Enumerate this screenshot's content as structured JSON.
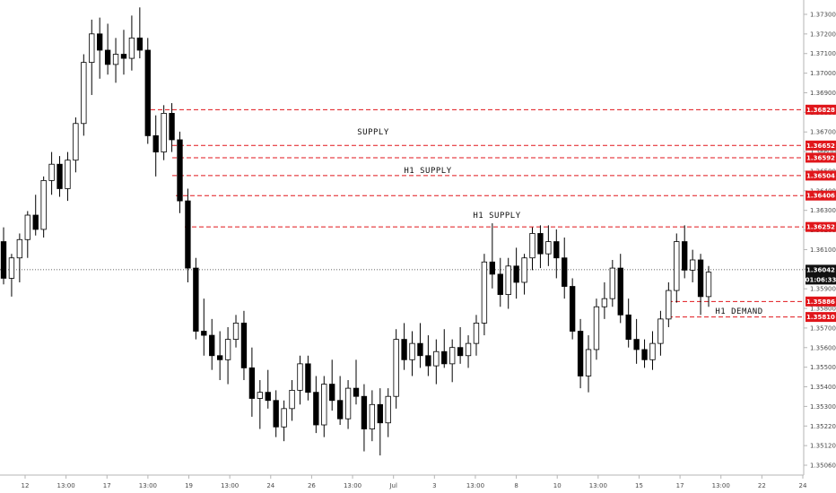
{
  "colors": {
    "background": "#ffffff",
    "level_line": "#e0161b",
    "level_badge": "#e0161b",
    "price_badge": "#111111",
    "candle_body": "#000000",
    "candle_hollow": "#ffffff",
    "axis_text": "#4a4a4a"
  },
  "chart_data": {
    "type": "candlestick",
    "instrument_note": "",
    "x_ticks": [
      "12",
      "13:00",
      "17",
      "13:00",
      "19",
      "13:00",
      "24",
      "26",
      "13:00",
      "Jul",
      "3",
      "13:00",
      "8",
      "10",
      "13:00",
      "15",
      "17",
      "13:00",
      "22",
      "24"
    ],
    "y_ticks": [
      "1.37300",
      "1.37200",
      "1.37100",
      "1.37000",
      "1.36900",
      "1.36800",
      "1.36700",
      "1.36600",
      "1.36500",
      "1.36400",
      "1.36300",
      "1.36200",
      "1.36100",
      "1.36000",
      "1.35900",
      "1.35800",
      "1.35700",
      "1.35600",
      "1.35500",
      "1.35400",
      "1.35300",
      "1.35220",
      "1.35120",
      "1.35060"
    ],
    "ylim": [
      1.3506,
      1.3734
    ],
    "levels": [
      {
        "label": "1.36828",
        "value": 1.36828,
        "style": "dashed"
      },
      {
        "label": "1.36652",
        "value": 1.36652,
        "style": "dashed"
      },
      {
        "label": "1.36592",
        "value": 1.36592,
        "style": "dashed"
      },
      {
        "label": "1.36504",
        "value": 1.36504,
        "style": "dashed"
      },
      {
        "label": "1.36406",
        "value": 1.36406,
        "style": "dashed"
      },
      {
        "label": "1.36252",
        "value": 1.36252,
        "style": "dashed"
      },
      {
        "label": "1.35886",
        "value": 1.35886,
        "style": "dashed"
      },
      {
        "label": "1.35810",
        "value": 1.3581,
        "style": "dashed"
      }
    ],
    "current_price": {
      "label": "1.36042",
      "value": 1.36042,
      "countdown": "01:06:33"
    },
    "zones": [
      {
        "label": "SUPPLY",
        "price": 1.3672
      },
      {
        "label": "H1 SUPPLY",
        "price": 1.3653
      },
      {
        "label": "H1 SUPPLY",
        "price": 1.3631
      },
      {
        "label": "H1 DEMAND",
        "price": 1.3584
      }
    ],
    "candles": [
      [
        1.3618,
        1.3625,
        1.3597,
        1.36
      ],
      [
        1.36,
        1.3612,
        1.3591,
        1.361
      ],
      [
        1.361,
        1.3622,
        1.3598,
        1.3619
      ],
      [
        1.3619,
        1.3633,
        1.361,
        1.3631
      ],
      [
        1.3631,
        1.3641,
        1.3621,
        1.3624
      ],
      [
        1.3624,
        1.365,
        1.362,
        1.3648
      ],
      [
        1.3648,
        1.3662,
        1.3641,
        1.3656
      ],
      [
        1.3656,
        1.366,
        1.364,
        1.3644
      ],
      [
        1.3644,
        1.3662,
        1.3638,
        1.3658
      ],
      [
        1.3658,
        1.3679,
        1.3652,
        1.3676
      ],
      [
        1.3676,
        1.371,
        1.367,
        1.3706
      ],
      [
        1.3706,
        1.3727,
        1.369,
        1.372
      ],
      [
        1.372,
        1.3728,
        1.3698,
        1.3712
      ],
      [
        1.3712,
        1.3725,
        1.37,
        1.3705
      ],
      [
        1.3705,
        1.3718,
        1.3696,
        1.371
      ],
      [
        1.371,
        1.3722,
        1.37,
        1.3708
      ],
      [
        1.3708,
        1.3729,
        1.3702,
        1.3718
      ],
      [
        1.3718,
        1.3733,
        1.3708,
        1.3712
      ],
      [
        1.3712,
        1.3718,
        1.3666,
        1.367
      ],
      [
        1.367,
        1.368,
        1.365,
        1.3662
      ],
      [
        1.3662,
        1.3685,
        1.3658,
        1.3681
      ],
      [
        1.3681,
        1.3686,
        1.3662,
        1.3668
      ],
      [
        1.3668,
        1.3672,
        1.3632,
        1.3638
      ],
      [
        1.3638,
        1.3644,
        1.3598,
        1.3605
      ],
      [
        1.3605,
        1.361,
        1.357,
        1.3574
      ],
      [
        1.3574,
        1.359,
        1.3562,
        1.3572
      ],
      [
        1.3572,
        1.358,
        1.3555,
        1.3562
      ],
      [
        1.3562,
        1.3574,
        1.355,
        1.356
      ],
      [
        1.356,
        1.3576,
        1.3548,
        1.357
      ],
      [
        1.357,
        1.3582,
        1.3566,
        1.3578
      ],
      [
        1.3578,
        1.3584,
        1.355,
        1.3556
      ],
      [
        1.3556,
        1.3566,
        1.3532,
        1.3541
      ],
      [
        1.3541,
        1.355,
        1.3526,
        1.3544
      ],
      [
        1.3544,
        1.3555,
        1.3536,
        1.354
      ],
      [
        1.354,
        1.3545,
        1.3522,
        1.3527
      ],
      [
        1.3527,
        1.354,
        1.352,
        1.3536
      ],
      [
        1.3536,
        1.355,
        1.353,
        1.3545
      ],
      [
        1.3545,
        1.3562,
        1.3538,
        1.3558
      ],
      [
        1.3558,
        1.3562,
        1.354,
        1.3544
      ],
      [
        1.3544,
        1.3552,
        1.3524,
        1.3528
      ],
      [
        1.3528,
        1.3552,
        1.3522,
        1.3548
      ],
      [
        1.3548,
        1.356,
        1.3535,
        1.354
      ],
      [
        1.354,
        1.3552,
        1.3528,
        1.3531
      ],
      [
        1.3531,
        1.355,
        1.3526,
        1.3546
      ],
      [
        1.3546,
        1.356,
        1.3538,
        1.3542
      ],
      [
        1.3542,
        1.3548,
        1.3515,
        1.3526
      ],
      [
        1.3526,
        1.3545,
        1.352,
        1.3538
      ],
      [
        1.3538,
        1.3546,
        1.3513,
        1.3529
      ],
      [
        1.3529,
        1.3546,
        1.3522,
        1.3542
      ],
      [
        1.3542,
        1.3575,
        1.3536,
        1.357
      ],
      [
        1.357,
        1.3578,
        1.3555,
        1.356
      ],
      [
        1.356,
        1.3574,
        1.3552,
        1.3568
      ],
      [
        1.3568,
        1.3578,
        1.3556,
        1.3562
      ],
      [
        1.3562,
        1.3572,
        1.3552,
        1.3557
      ],
      [
        1.3557,
        1.357,
        1.3548,
        1.3564
      ],
      [
        1.3564,
        1.3575,
        1.3556,
        1.3558
      ],
      [
        1.3558,
        1.357,
        1.3549,
        1.3566
      ],
      [
        1.3566,
        1.3576,
        1.3558,
        1.3562
      ],
      [
        1.3562,
        1.3572,
        1.3556,
        1.3568
      ],
      [
        1.3568,
        1.3582,
        1.3562,
        1.3578
      ],
      [
        1.3578,
        1.3612,
        1.3572,
        1.3608
      ],
      [
        1.3608,
        1.3627,
        1.3595,
        1.3602
      ],
      [
        1.3602,
        1.361,
        1.3586,
        1.3592
      ],
      [
        1.3592,
        1.361,
        1.3585,
        1.3606
      ],
      [
        1.3606,
        1.3615,
        1.359,
        1.3598
      ],
      [
        1.3598,
        1.3612,
        1.3592,
        1.361
      ],
      [
        1.361,
        1.3625,
        1.3604,
        1.3622
      ],
      [
        1.3622,
        1.3626,
        1.3605,
        1.3612
      ],
      [
        1.3612,
        1.3626,
        1.3606,
        1.3618
      ],
      [
        1.3618,
        1.3624,
        1.36,
        1.361
      ],
      [
        1.361,
        1.362,
        1.359,
        1.3596
      ],
      [
        1.3596,
        1.36,
        1.357,
        1.3574
      ],
      [
        1.3574,
        1.358,
        1.3546,
        1.3552
      ],
      [
        1.3552,
        1.3572,
        1.3544,
        1.3565
      ],
      [
        1.3565,
        1.359,
        1.356,
        1.3586
      ],
      [
        1.3586,
        1.3598,
        1.358,
        1.359
      ],
      [
        1.359,
        1.3609,
        1.3586,
        1.3605
      ],
      [
        1.3605,
        1.3612,
        1.3578,
        1.3582
      ],
      [
        1.3582,
        1.359,
        1.3566,
        1.357
      ],
      [
        1.357,
        1.358,
        1.3558,
        1.3565
      ],
      [
        1.3565,
        1.357,
        1.3556,
        1.356
      ],
      [
        1.356,
        1.3574,
        1.3555,
        1.3568
      ],
      [
        1.3568,
        1.3584,
        1.3562,
        1.358
      ],
      [
        1.358,
        1.3598,
        1.3576,
        1.3594
      ],
      [
        1.3594,
        1.3622,
        1.3588,
        1.3618
      ],
      [
        1.3618,
        1.3626,
        1.36,
        1.3604
      ],
      [
        1.3604,
        1.3614,
        1.3598,
        1.3609
      ],
      [
        1.3609,
        1.3612,
        1.3582,
        1.3591
      ],
      [
        1.3591,
        1.3606,
        1.3586,
        1.3603
      ]
    ]
  }
}
